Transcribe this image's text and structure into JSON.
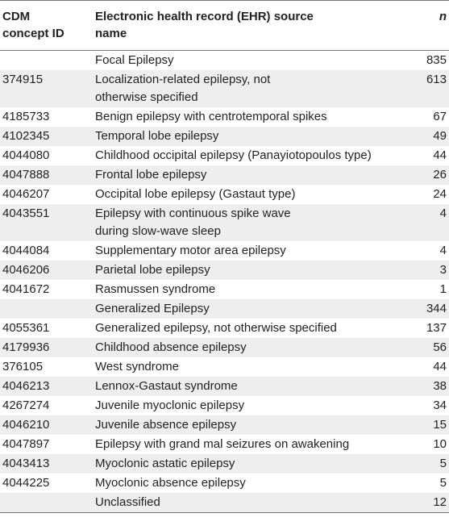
{
  "headers": {
    "concept_id": "CDM concept ID",
    "source_name": "Electronic health record (EHR) source name",
    "n": "n"
  },
  "rows": [
    {
      "id": "",
      "name": "Focal Epilepsy",
      "n": "835"
    },
    {
      "id": "374915",
      "name": "Localization-related epilepsy, not otherwise specified",
      "n": "613"
    },
    {
      "id": "4185733",
      "name": "Benign epilepsy with centrotemporal spikes",
      "n": "67"
    },
    {
      "id": "4102345",
      "name": "Temporal lobe epilepsy",
      "n": "49"
    },
    {
      "id": "4044080",
      "name": "Childhood occipital epilepsy (Panayiotopoulos type)",
      "n": "44"
    },
    {
      "id": "4047888",
      "name": "Frontal lobe epilepsy",
      "n": "26"
    },
    {
      "id": "4046207",
      "name": "Occipital lobe epilepsy (Gastaut type)",
      "n": "24"
    },
    {
      "id": "4043551",
      "name": "Epilepsy with continuous spike wave during slow-wave sleep",
      "n": "4"
    },
    {
      "id": "4044084",
      "name": "Supplementary motor area epilepsy",
      "n": "4"
    },
    {
      "id": "4046206",
      "name": "Parietal lobe epilepsy",
      "n": "3"
    },
    {
      "id": "4041672",
      "name": "Rasmussen syndrome",
      "n": "1"
    },
    {
      "id": "",
      "name": "Generalized Epilepsy",
      "n": "344"
    },
    {
      "id": "4055361",
      "name": "Generalized epilepsy, not otherwise specified",
      "n": "137"
    },
    {
      "id": "4179936",
      "name": "Childhood absence epilepsy",
      "n": "56"
    },
    {
      "id": "376105",
      "name": "West syndrome",
      "n": "44"
    },
    {
      "id": "4046213",
      "name": "Lennox-Gastaut syndrome",
      "n": "38"
    },
    {
      "id": "4267274",
      "name": "Juvenile myoclonic epilepsy",
      "n": "34"
    },
    {
      "id": "4046210",
      "name": "Juvenile absence epilepsy",
      "n": "15"
    },
    {
      "id": "4047897",
      "name": "Epilepsy with grand mal seizures on awakening",
      "n": "10"
    },
    {
      "id": "4043413",
      "name": "Myoclonic astatic epilepsy",
      "n": "5"
    },
    {
      "id": "4044225",
      "name": "Myoclonic absence epilepsy",
      "n": "5"
    },
    {
      "id": "",
      "name": "Unclassified",
      "n": "12"
    }
  ],
  "style": {
    "shade_color": "#eeeeee",
    "rule_color": "#777777"
  }
}
